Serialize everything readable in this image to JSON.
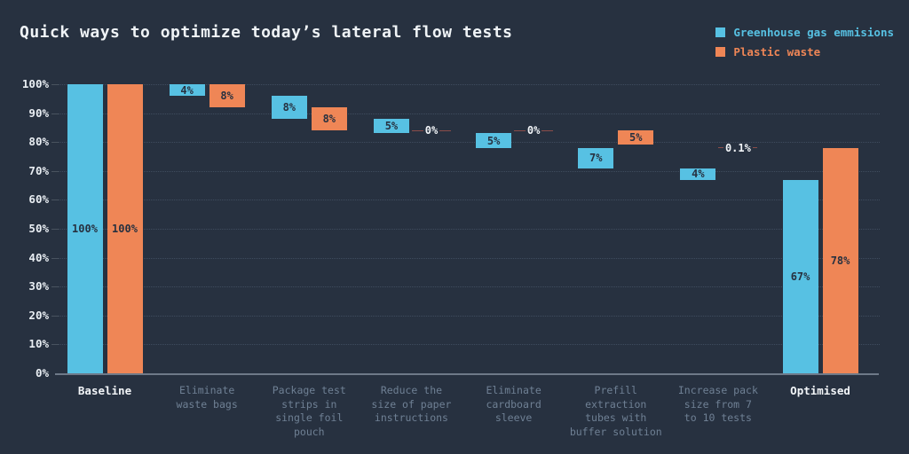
{
  "title": "Quick ways to optimize today’s lateral flow tests",
  "legend": [
    {
      "label": "Greenhouse gas emmisions",
      "color": "#57c1e3"
    },
    {
      "label": "Plastic waste",
      "color": "#ef8656"
    }
  ],
  "colors": {
    "background": "#273140",
    "series_blue": "#57c1e3",
    "series_orange": "#ef8656",
    "bar_value_text": "#273140",
    "zero_line": "#8b4d4a",
    "zero_text": "#f2f5f8",
    "grid": "#3c4656",
    "axis": "#6e7988",
    "y_tick_text": "#e9eef3",
    "category_muted": "#6f8094",
    "category_emphasis": "#f2f5f8"
  },
  "chart_data": {
    "type": "bar",
    "subtype": "waterfall",
    "title": "Quick ways to optimize today’s lateral flow tests",
    "xlabel": "",
    "ylabel": "",
    "ylim": [
      0,
      100
    ],
    "grid": "horizontal-dotted",
    "legend_position": "top-right",
    "yticks": [
      "0%",
      "10%",
      "20%",
      "30%",
      "40%",
      "50%",
      "60%",
      "70%",
      "80%",
      "90%",
      "100%"
    ],
    "series": [
      {
        "name": "Greenhouse gas emmisions",
        "color": "#57c1e3"
      },
      {
        "name": "Plastic waste",
        "color": "#ef8656"
      }
    ],
    "groups": [
      {
        "category": "Baseline",
        "label_lines": [
          "Baseline"
        ],
        "emphasis": true,
        "bars": [
          {
            "series": 0,
            "start": 0,
            "end": 100,
            "label": "100%"
          },
          {
            "series": 1,
            "start": 0,
            "end": 100,
            "label": "100%"
          }
        ]
      },
      {
        "category": "Eliminate waste bags",
        "label_lines": [
          "Eliminate",
          "waste bags"
        ],
        "emphasis": false,
        "bars": [
          {
            "series": 0,
            "start": 96,
            "end": 100,
            "label": "4%"
          },
          {
            "series": 1,
            "start": 92,
            "end": 100,
            "label": "8%"
          }
        ]
      },
      {
        "category": "Package test strips in single foil pouch",
        "label_lines": [
          "Package test",
          "strips in",
          "single foil",
          "pouch"
        ],
        "emphasis": false,
        "bars": [
          {
            "series": 0,
            "start": 88,
            "end": 96,
            "label": "8%"
          },
          {
            "series": 1,
            "start": 84,
            "end": 92,
            "label": "8%"
          }
        ]
      },
      {
        "category": "Reduce the size of paper instructions",
        "label_lines": [
          "Reduce the",
          "size of paper",
          "instructions"
        ],
        "emphasis": false,
        "bars": [
          {
            "series": 0,
            "start": 83,
            "end": 88,
            "label": "5%"
          },
          {
            "series": 1,
            "marker": true,
            "value": 84,
            "label": "0%"
          }
        ]
      },
      {
        "category": "Eliminate cardboard sleeve",
        "label_lines": [
          "Eliminate",
          "cardboard",
          "sleeve"
        ],
        "emphasis": false,
        "bars": [
          {
            "series": 0,
            "start": 78,
            "end": 83,
            "label": "5%"
          },
          {
            "series": 1,
            "marker": true,
            "value": 84,
            "label": "0%"
          }
        ]
      },
      {
        "category": "Prefill extraction tubes with buffer solution",
        "label_lines": [
          "Prefill",
          "extraction",
          "tubes with",
          "buffer solution"
        ],
        "emphasis": false,
        "bars": [
          {
            "series": 0,
            "start": 71,
            "end": 78,
            "label": "7%"
          },
          {
            "series": 1,
            "start": 79,
            "end": 84,
            "label": "5%"
          }
        ]
      },
      {
        "category": "Increase pack size from 7 to 10 tests",
        "label_lines": [
          "Increase pack",
          "size from 7",
          "to 10 tests"
        ],
        "emphasis": false,
        "bars": [
          {
            "series": 0,
            "start": 67,
            "end": 71,
            "label": "4%"
          },
          {
            "series": 1,
            "marker": true,
            "value": 78,
            "label": "0.1%"
          }
        ]
      },
      {
        "category": "Optimised",
        "label_lines": [
          "Optimised"
        ],
        "emphasis": true,
        "bars": [
          {
            "series": 0,
            "start": 0,
            "end": 67,
            "label": "67%"
          },
          {
            "series": 1,
            "start": 0,
            "end": 78,
            "label": "78%"
          }
        ]
      }
    ]
  }
}
